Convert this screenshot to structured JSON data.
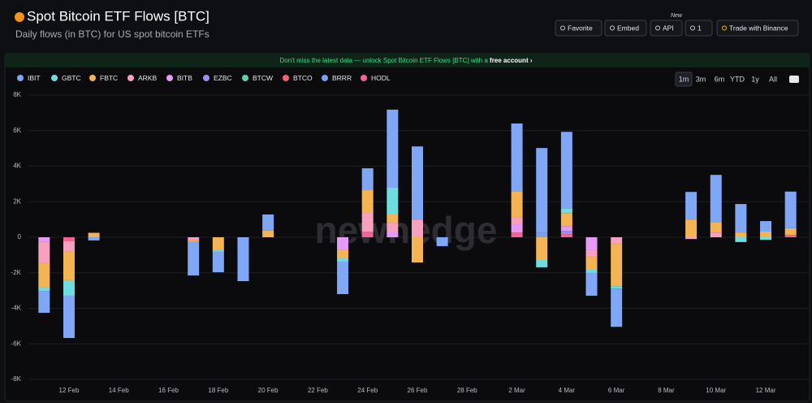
{
  "header": {
    "title": "Spot Bitcoin ETF Flows [BTC]",
    "subtitle": "Daily flows (in BTC) for US spot bitcoin ETFs",
    "buttons": [
      "Favorite",
      "Embed",
      "API",
      "1",
      "Trade with Binance"
    ],
    "api_badge": "New"
  },
  "banner": {
    "text": "Don't miss the latest data — unlock Spot Bitcoin ETF Flows [BTC] with a",
    "link": "free account ›"
  },
  "controls": {
    "ranges": [
      "1m",
      "3m",
      "6m",
      "YTD",
      "1y",
      "All"
    ],
    "selected": "1m"
  },
  "chart_data": {
    "type": "stacked-bar",
    "watermark": "newhedge",
    "categories": [
      null,
      "12 Feb",
      null,
      "14 Feb",
      null,
      "16 Feb",
      null,
      "18 Feb",
      null,
      "20 Feb",
      null,
      "22 Feb",
      null,
      "24 Feb",
      null,
      "26 Feb",
      null,
      "28 Feb",
      null,
      "2 Mar",
      null,
      "4 Mar",
      null,
      "6 Mar",
      null,
      "8 Mar",
      null,
      "10 Mar",
      null,
      "12 Mar",
      null
    ],
    "ylim": [
      -8000,
      8000
    ],
    "yticks": [
      {
        "value": -8000,
        "label": "-8K"
      },
      {
        "value": -6000,
        "label": "-6K"
      },
      {
        "value": -4000,
        "label": "-4K"
      },
      {
        "value": -2000,
        "label": "-2K"
      },
      0,
      {
        "value": 2000,
        "label": "2K"
      },
      {
        "value": 4000,
        "label": "4K"
      },
      {
        "value": 6000,
        "label": "6K"
      },
      {
        "value": 8000,
        "label": "8K"
      }
    ],
    "grid": true,
    "series": [
      {
        "name": "IBIT",
        "color": "#7fa7f5",
        "values": [
          -1230,
          -2380,
          -180,
          null,
          null,
          null,
          -1900,
          -1150,
          -2470,
          910,
          null,
          null,
          -1830,
          1230,
          4390,
          4110,
          -500,
          null,
          null,
          3840,
          4750,
          4300,
          -1280,
          -2150,
          null,
          null,
          1550,
          2650,
          1600,
          590,
          2060
        ]
      },
      {
        "name": "GBTC",
        "color": "#6fdde0",
        "values": [
          -230,
          -870,
          0,
          null,
          null,
          null,
          0,
          -90,
          0,
          0,
          null,
          null,
          -180,
          0,
          1510,
          0,
          0,
          null,
          null,
          0,
          -410,
          270,
          -180,
          -140,
          null,
          null,
          0,
          0,
          -270,
          -150,
          0
        ]
      },
      {
        "name": "FBTC",
        "color": "#f5b454",
        "values": [
          -1330,
          -1600,
          250,
          null,
          null,
          null,
          -100,
          -730,
          0,
          370,
          null,
          null,
          -460,
          1280,
          460,
          -1420,
          0,
          null,
          null,
          1420,
          -1280,
          730,
          -730,
          -2380,
          null,
          null,
          1000,
          590,
          270,
          320,
          370
        ]
      },
      {
        "name": "ARKB",
        "color": "#f7a0c0",
        "values": [
          -1190,
          -590,
          0,
          null,
          null,
          null,
          -150,
          0,
          0,
          0,
          null,
          null,
          0,
          1050,
          500,
          1000,
          0,
          null,
          null,
          410,
          0,
          0,
          -370,
          -370,
          null,
          null,
          -100,
          270,
          0,
          0,
          0
        ]
      },
      {
        "name": "BITB",
        "color": "#e59af5",
        "values": [
          -270,
          0,
          0,
          null,
          null,
          null,
          0,
          0,
          0,
          0,
          null,
          null,
          -730,
          0,
          320,
          0,
          0,
          null,
          null,
          460,
          0,
          270,
          -730,
          0,
          null,
          null,
          0,
          0,
          0,
          0,
          0
        ]
      },
      {
        "name": "EZBC",
        "color": "#9a8ef0",
        "values": [
          0,
          0,
          0,
          null,
          null,
          null,
          0,
          0,
          0,
          0,
          null,
          null,
          0,
          0,
          0,
          0,
          0,
          null,
          null,
          0,
          0,
          180,
          0,
          0,
          null,
          null,
          0,
          0,
          0,
          0,
          0
        ]
      },
      {
        "name": "BTCW",
        "color": "#5fcfa8",
        "values": [
          0,
          0,
          0,
          null,
          null,
          null,
          0,
          0,
          0,
          0,
          null,
          null,
          0,
          0,
          0,
          0,
          0,
          null,
          null,
          0,
          0,
          0,
          0,
          0,
          null,
          null,
          0,
          0,
          0,
          0,
          0
        ]
      },
      {
        "name": "BTCO",
        "color": "#f4627a",
        "values": [
          0,
          0,
          0,
          null,
          null,
          null,
          0,
          0,
          0,
          0,
          null,
          null,
          0,
          0,
          0,
          0,
          0,
          null,
          null,
          0,
          0,
          0,
          0,
          0,
          null,
          null,
          0,
          0,
          0,
          0,
          0
        ]
      },
      {
        "name": "BRRR",
        "color": "#7d9eea",
        "values": [
          0,
          0,
          0,
          null,
          null,
          null,
          0,
          0,
          0,
          0,
          null,
          null,
          0,
          0,
          0,
          0,
          0,
          null,
          null,
          0,
          270,
          0,
          0,
          0,
          null,
          null,
          0,
          0,
          0,
          0,
          0
        ]
      },
      {
        "name": "HODL",
        "color": "#f06595",
        "values": [
          0,
          -230,
          0,
          null,
          null,
          null,
          0,
          0,
          0,
          0,
          null,
          null,
          0,
          320,
          0,
          0,
          0,
          null,
          null,
          270,
          0,
          180,
          0,
          0,
          null,
          null,
          0,
          0,
          0,
          0,
          140
        ]
      }
    ]
  }
}
